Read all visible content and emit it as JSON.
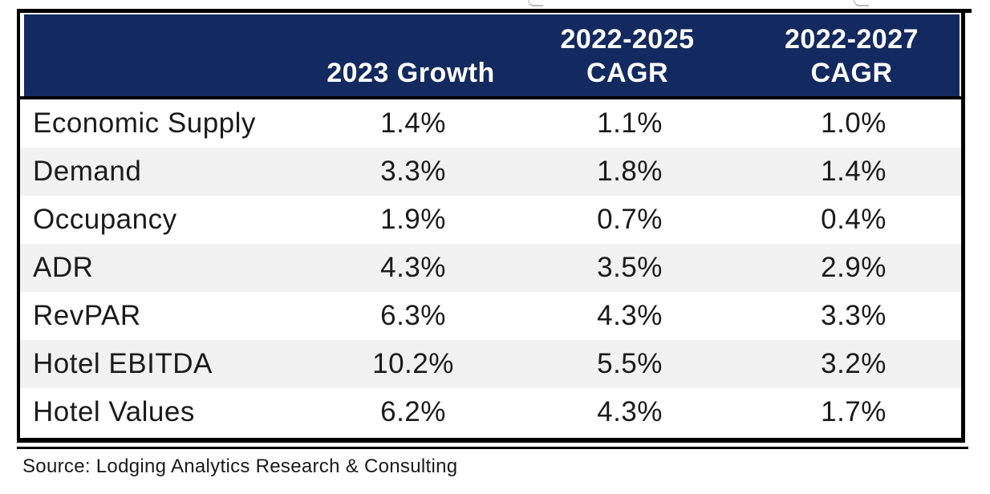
{
  "chart_data": {
    "type": "table",
    "columns": [
      "",
      "2023 Growth",
      "2022-2025 CAGR",
      "2022-2027 CAGR"
    ],
    "rows": [
      [
        "Economic Supply",
        "1.4%",
        "1.1%",
        "1.0%"
      ],
      [
        "Demand",
        "3.3%",
        "1.8%",
        "1.4%"
      ],
      [
        "Occupancy",
        "1.9%",
        "0.7%",
        "0.4%"
      ],
      [
        "ADR",
        "4.3%",
        "3.5%",
        "2.9%"
      ],
      [
        "RevPAR",
        "6.3%",
        "4.3%",
        "3.3%"
      ],
      [
        "Hotel EBITDA",
        "10.2%",
        "5.5%",
        "3.2%"
      ],
      [
        "Hotel Values",
        "6.2%",
        "4.3%",
        "1.7%"
      ]
    ],
    "source": "Source: Lodging Analytics Research & Consulting",
    "layout_hints": {
      "header_bg": "#122a5f",
      "header_text_color": "#ffffff",
      "alt_row_bg": "#f2f1f2",
      "border_color": "#000000",
      "alternating_rows": "even rows shaded"
    }
  },
  "header_display": {
    "growth": "2023 Growth",
    "c3_line1": "2022-2025",
    "c3_line2": "CAGR",
    "c4_line1": "2022-2027",
    "c4_line2": "CAGR"
  },
  "source_note": "Source: Lodging Analytics Research & Consulting"
}
